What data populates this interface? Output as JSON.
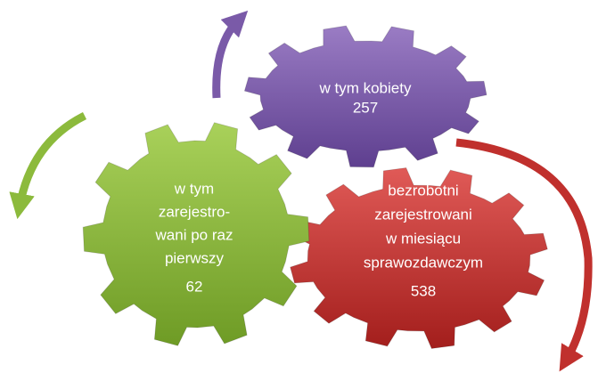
{
  "nodes": [
    {
      "label": [
        "bezrobotni",
        "zarejestrowani",
        "w miesiącu",
        "sprawozdawczym"
      ],
      "value": 538
    },
    {
      "label": [
        "w tym kobiety"
      ],
      "value": 257
    },
    {
      "label": [
        "w tym",
        "zarejestro-",
        "wani po raz",
        "pierwszy"
      ],
      "value": 62
    }
  ]
}
